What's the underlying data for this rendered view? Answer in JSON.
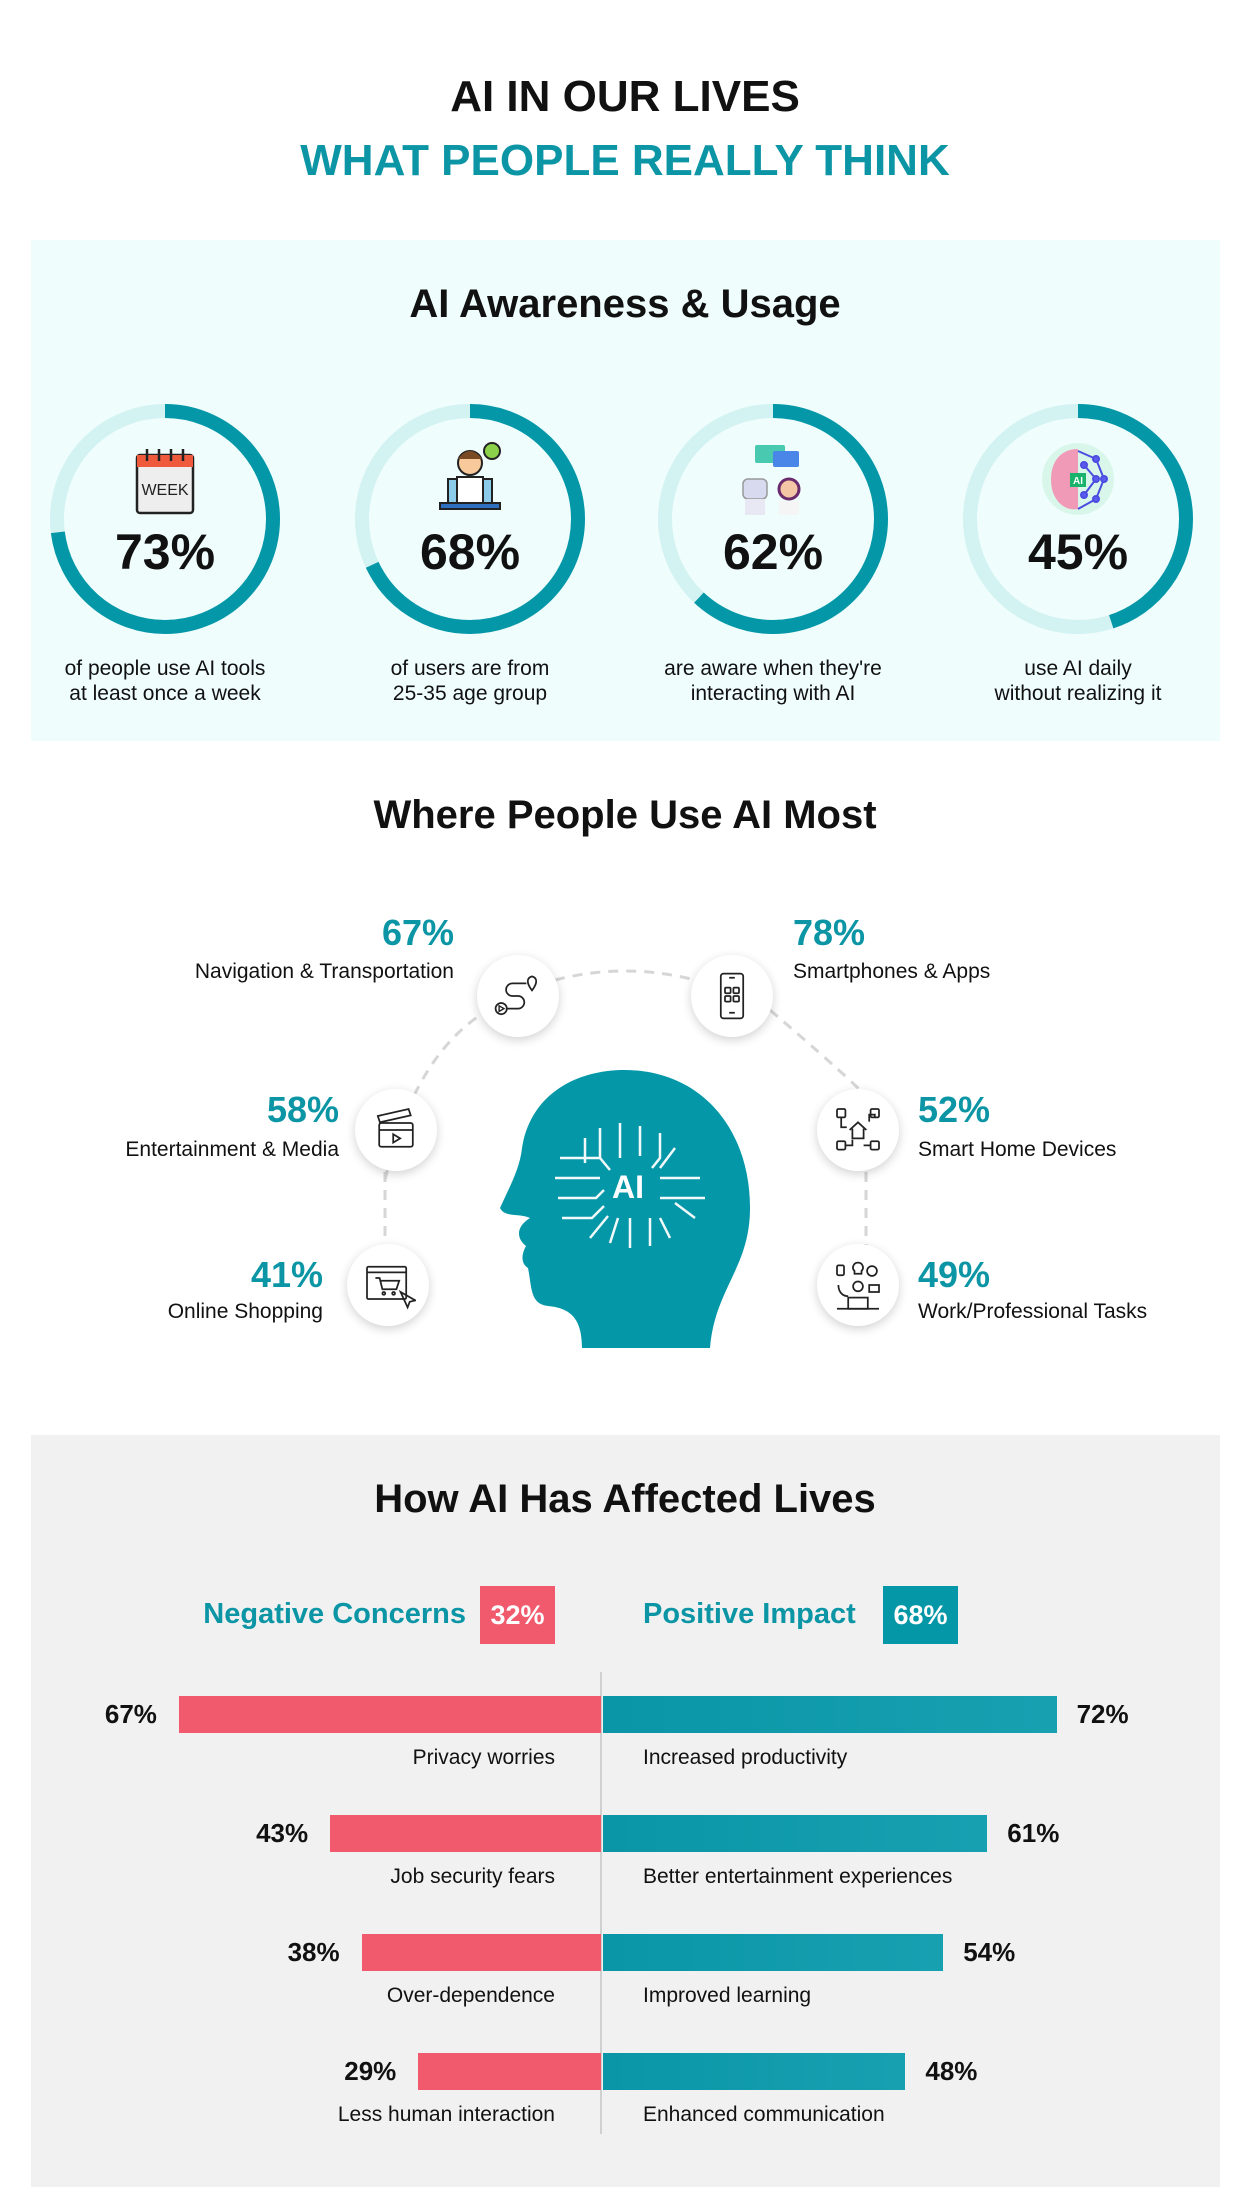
{
  "header": {
    "title_line1": "AI IN OUR LIVES",
    "title_line2": "WHAT PEOPLE REALLY THINK"
  },
  "colors": {
    "teal": "#0497a8",
    "pink": "#f05a6c",
    "ring_track": "#d3f2f2",
    "awareness_bg": "#effdfd",
    "affected_bg": "#f1f1f1"
  },
  "awareness": {
    "title": "AI Awareness & Usage",
    "stats": [
      {
        "value": 73,
        "label": "73%",
        "caption1": "of people use AI tools",
        "caption2": "at least once a week",
        "icon": "calendar-week-icon"
      },
      {
        "value": 68,
        "label": "68%",
        "caption1": "of users are from",
        "caption2": "25-35 age group",
        "icon": "user-laptop-icon"
      },
      {
        "value": 62,
        "label": "62%",
        "caption1": "are aware when they're",
        "caption2": "interacting with AI",
        "icon": "robot-chat-icon"
      },
      {
        "value": 45,
        "label": "45%",
        "caption1": "use AI daily",
        "caption2": "without realizing it",
        "icon": "ai-brain-icon"
      }
    ]
  },
  "usage": {
    "title": "Where People Use AI Most",
    "center_icon_text": "AI",
    "items": [
      {
        "pct": "67%",
        "label": "Navigation & Transportation",
        "icon": "route-icon"
      },
      {
        "pct": "78%",
        "label": "Smartphones & Apps",
        "icon": "smartphone-apps-icon"
      },
      {
        "pct": "58%",
        "label": "Entertainment & Media",
        "icon": "clapperboard-icon"
      },
      {
        "pct": "52%",
        "label": "Smart Home Devices",
        "icon": "smart-home-icon"
      },
      {
        "pct": "41%",
        "label": "Online Shopping",
        "icon": "shopping-cart-icon"
      },
      {
        "pct": "49%",
        "label": "Work/Professional Tasks",
        "icon": "work-tasks-icon"
      }
    ]
  },
  "affected": {
    "title": "How AI Has Affected Lives",
    "negative_header": "Negative Concerns",
    "negative_total": "32%",
    "positive_header": "Positive Impact",
    "positive_total": "68%",
    "chart_data": {
      "type": "bar",
      "negative": [
        {
          "label": "Privacy worries",
          "value": 67
        },
        {
          "label": "Job security fears",
          "value": 43
        },
        {
          "label": "Over-dependence",
          "value": 38
        },
        {
          "label": "Less human interaction",
          "value": 29
        }
      ],
      "positive": [
        {
          "label": "Increased productivity",
          "value": 72
        },
        {
          "label": "Better entertainment experiences",
          "value": 61
        },
        {
          "label": "Improved learning",
          "value": 54
        },
        {
          "label": "Enhanced communication",
          "value": 48
        }
      ]
    }
  }
}
